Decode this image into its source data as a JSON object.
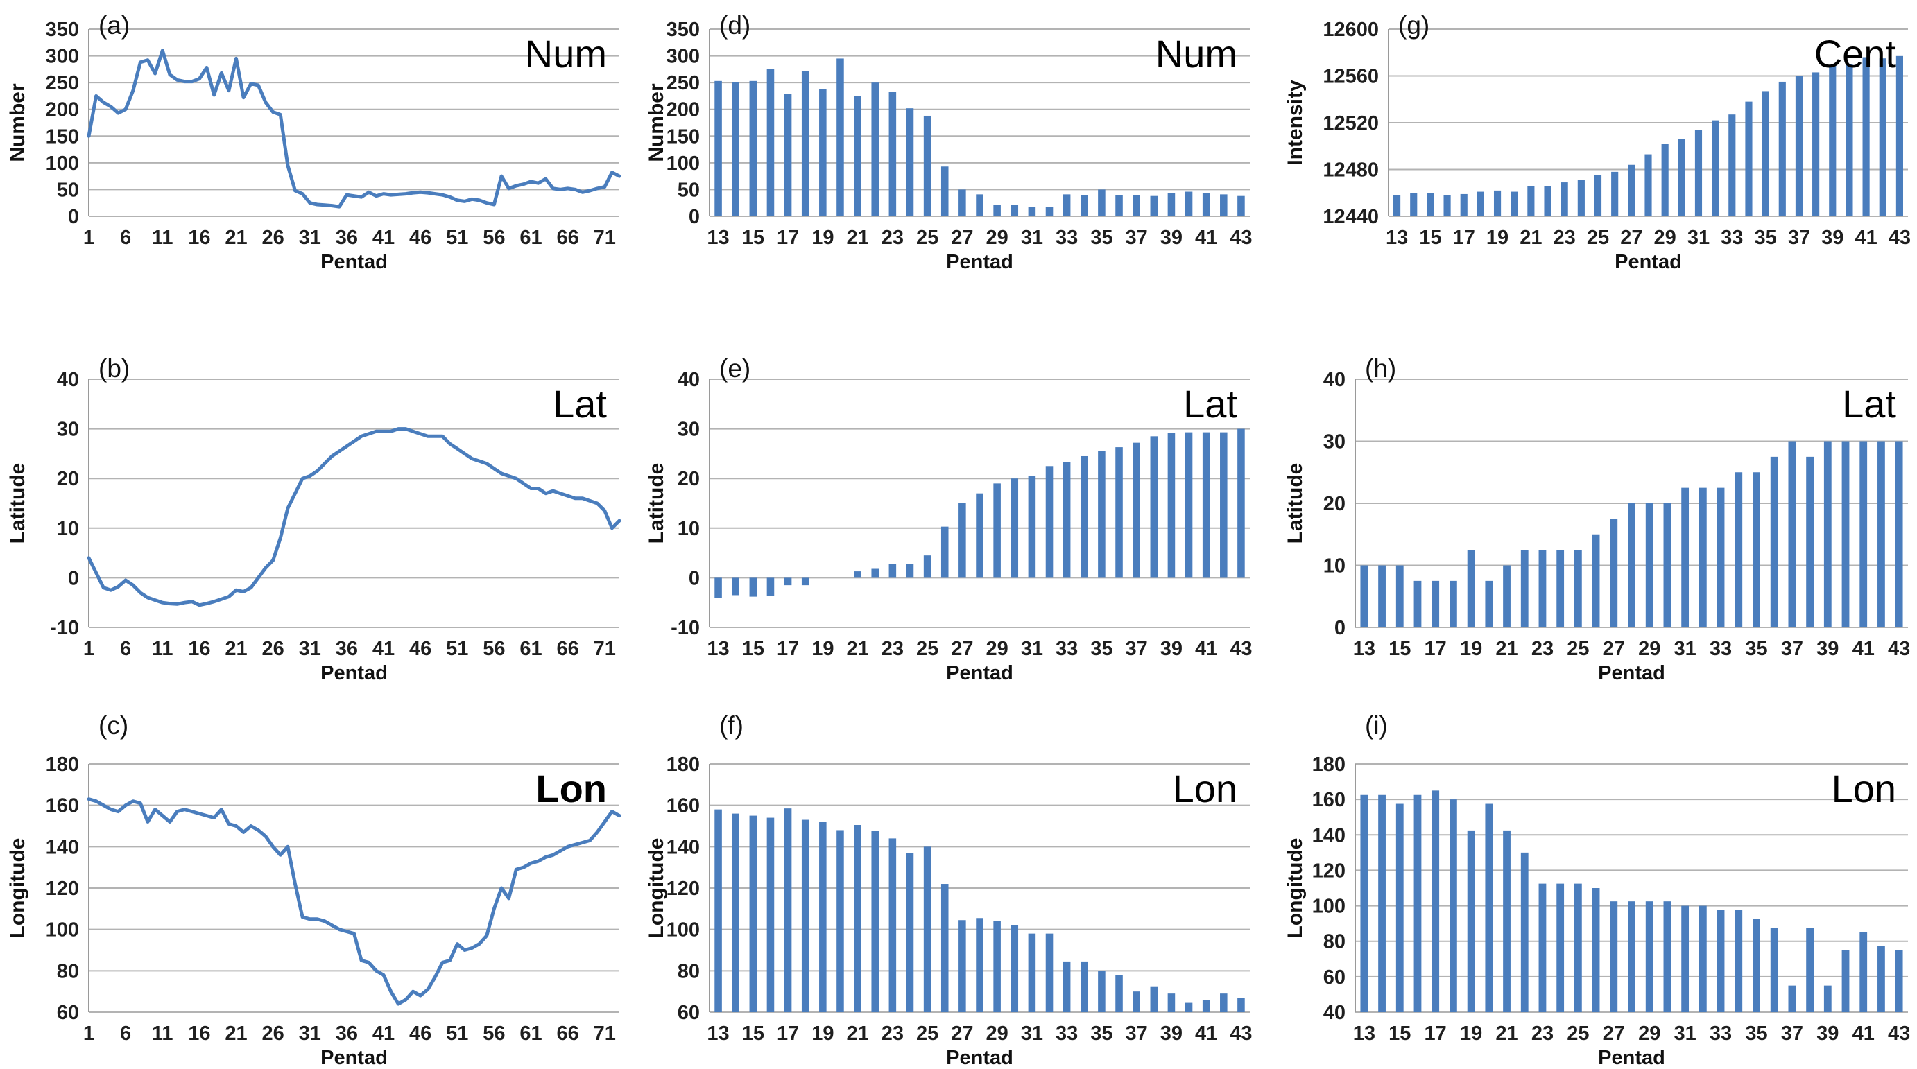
{
  "colors": {
    "series_blue": "#4a7dbd",
    "gridline_gray": "#b3b3b3",
    "axis_gray": "#9a9a9a",
    "text_dark": "#1f1f1f",
    "background": "#ffffff"
  },
  "chart_data": [
    {
      "panel_label": "(a)",
      "series_label": "Num",
      "type": "line",
      "xlabel": "Pentad",
      "ylabel": "Number",
      "ylim": [
        0,
        350
      ],
      "yticks": [
        0,
        50,
        100,
        150,
        200,
        250,
        300,
        350
      ],
      "x_start": 1,
      "x_end": 73,
      "xticks": [
        1,
        6,
        11,
        16,
        21,
        26,
        31,
        36,
        41,
        46,
        51,
        56,
        61,
        66,
        71
      ],
      "grid": true,
      "legend_position": "none",
      "values": [
        150,
        225,
        213,
        205,
        193,
        200,
        235,
        288,
        292,
        267,
        310,
        265,
        255,
        252,
        252,
        257,
        278,
        227,
        268,
        235,
        295,
        222,
        248,
        245,
        213,
        195,
        190,
        95,
        48,
        42,
        25,
        22,
        21,
        20,
        18,
        40,
        38,
        36,
        45,
        38,
        42,
        40,
        41,
        42,
        44,
        45,
        44,
        42,
        40,
        36,
        30,
        28,
        32,
        30,
        25,
        22,
        75,
        52,
        57,
        60,
        65,
        62,
        70,
        52,
        50,
        52,
        50,
        45,
        48,
        52,
        55,
        82,
        75
      ]
    },
    {
      "panel_label": "(b)",
      "series_label": "Lat",
      "type": "line",
      "xlabel": "Pentad",
      "ylabel": "Latitude",
      "ylim": [
        -10,
        40
      ],
      "yticks": [
        -10,
        0,
        10,
        20,
        30,
        40
      ],
      "x_start": 1,
      "x_end": 73,
      "xticks": [
        1,
        6,
        11,
        16,
        21,
        26,
        31,
        36,
        41,
        46,
        51,
        56,
        61,
        66,
        71
      ],
      "grid": true,
      "legend_position": "none",
      "values": [
        4,
        1,
        -2,
        -2.5,
        -1.8,
        -0.5,
        -1.5,
        -3,
        -4,
        -4.5,
        -5,
        -5.2,
        -5.3,
        -5,
        -4.8,
        -5.5,
        -5.2,
        -4.8,
        -4.3,
        -3.8,
        -2.5,
        -2.8,
        -2,
        0,
        2,
        3.5,
        8,
        14,
        17,
        20,
        20.5,
        21.5,
        23,
        24.5,
        25.5,
        26.5,
        27.5,
        28.5,
        29,
        29.5,
        29.5,
        29.5,
        30,
        30,
        29.5,
        29,
        28.5,
        28.5,
        28.5,
        27,
        26,
        25,
        24,
        23.5,
        23,
        22,
        21,
        20.5,
        20,
        19,
        18,
        18,
        17,
        17.5,
        17,
        16.5,
        16,
        16,
        15.5,
        15,
        13.5,
        10,
        11.5
      ]
    },
    {
      "panel_label": "(c)",
      "series_label": "Lon",
      "series_label_bold": true,
      "type": "line",
      "xlabel": "Pentad",
      "ylabel": "Longitude",
      "ylim": [
        60,
        180
      ],
      "yticks": [
        60,
        80,
        100,
        120,
        140,
        160,
        180
      ],
      "x_start": 1,
      "x_end": 73,
      "xticks": [
        1,
        6,
        11,
        16,
        21,
        26,
        31,
        36,
        41,
        46,
        51,
        56,
        61,
        66,
        71
      ],
      "grid": true,
      "legend_position": "none",
      "values": [
        163,
        162,
        160,
        158,
        157,
        160,
        162,
        161,
        152,
        158,
        155,
        152,
        157,
        158,
        157,
        156,
        155,
        154,
        158,
        151,
        150,
        147,
        150,
        148,
        145,
        140,
        136,
        140,
        122,
        106,
        105,
        105,
        104,
        102,
        100,
        99,
        98,
        85,
        84,
        80,
        78,
        70,
        64,
        66,
        70,
        68,
        71,
        77,
        84,
        85,
        93,
        90,
        91,
        93,
        97,
        110,
        120,
        115,
        129,
        130,
        132,
        133,
        135,
        136,
        138,
        140,
        141,
        142,
        143,
        147,
        152,
        157,
        155
      ]
    },
    {
      "panel_label": "(d)",
      "series_label": "Num",
      "type": "bar",
      "xlabel": "Pentad",
      "ylabel": "Number",
      "ylim": [
        0,
        350
      ],
      "yticks": [
        0,
        50,
        100,
        150,
        200,
        250,
        300,
        350
      ],
      "baseline": 0,
      "categories": [
        13,
        14,
        15,
        16,
        17,
        18,
        19,
        20,
        21,
        22,
        23,
        24,
        25,
        26,
        27,
        28,
        29,
        30,
        31,
        32,
        33,
        34,
        35,
        36,
        37,
        38,
        39,
        40,
        41,
        42,
        43
      ],
      "xticks": [
        13,
        15,
        17,
        19,
        21,
        23,
        25,
        27,
        29,
        31,
        33,
        35,
        37,
        39,
        41,
        43
      ],
      "grid": true,
      "legend_position": "none",
      "values": [
        253,
        251,
        253,
        275,
        229,
        271,
        238,
        295,
        225,
        250,
        233,
        202,
        188,
        93,
        50,
        41,
        22,
        22,
        18,
        17,
        41,
        40,
        50,
        39,
        40,
        38,
        43,
        46,
        44,
        41,
        38
      ]
    },
    {
      "panel_label": "(e)",
      "series_label": "Lat",
      "type": "bar",
      "xlabel": "Pentad",
      "ylabel": "Latitude",
      "ylim": [
        -10,
        40
      ],
      "yticks": [
        -10,
        0,
        10,
        20,
        30,
        40
      ],
      "baseline": 0,
      "categories": [
        13,
        14,
        15,
        16,
        17,
        18,
        19,
        20,
        21,
        22,
        23,
        24,
        25,
        26,
        27,
        28,
        29,
        30,
        31,
        32,
        33,
        34,
        35,
        36,
        37,
        38,
        39,
        40,
        41,
        42,
        43
      ],
      "xticks": [
        13,
        15,
        17,
        19,
        21,
        23,
        25,
        27,
        29,
        31,
        33,
        35,
        37,
        39,
        41,
        43
      ],
      "grid": true,
      "legend_position": "none",
      "values": [
        -4,
        -3.5,
        -3.8,
        -3.6,
        -1.5,
        -1.5,
        0,
        0,
        1.3,
        1.8,
        2.8,
        2.8,
        4.5,
        10.3,
        15,
        17,
        19,
        20,
        20.5,
        22.5,
        23.3,
        24.5,
        25.5,
        26.3,
        27.2,
        28.5,
        29.2,
        29.3,
        29.3,
        29.3,
        30
      ]
    },
    {
      "panel_label": "(f)",
      "series_label": "Lon",
      "type": "bar",
      "xlabel": "Pentad",
      "ylabel": "Longitude",
      "ylim": [
        60,
        180
      ],
      "yticks": [
        60,
        80,
        100,
        120,
        140,
        160,
        180
      ],
      "baseline": 60,
      "categories": [
        13,
        14,
        15,
        16,
        17,
        18,
        19,
        20,
        21,
        22,
        23,
        24,
        25,
        26,
        27,
        28,
        29,
        30,
        31,
        32,
        33,
        34,
        35,
        36,
        37,
        38,
        39,
        40,
        41,
        42,
        43
      ],
      "xticks": [
        13,
        15,
        17,
        19,
        21,
        23,
        25,
        27,
        29,
        31,
        33,
        35,
        37,
        39,
        41,
        43
      ],
      "grid": true,
      "legend_position": "none",
      "values": [
        158,
        156,
        155,
        154,
        158.5,
        153,
        152,
        148,
        150.5,
        147.5,
        144,
        137,
        140,
        122,
        104.5,
        105.5,
        104,
        102,
        98,
        98,
        84.5,
        84.5,
        80,
        78,
        70,
        72.5,
        69,
        64.5,
        66,
        69,
        67
      ]
    },
    {
      "panel_label": "(g)",
      "series_label": "Cent",
      "type": "bar",
      "xlabel": "Pentad",
      "ylabel": "Intensity",
      "ylim": [
        12440,
        12600
      ],
      "yticks": [
        12440,
        12480,
        12520,
        12560,
        12600
      ],
      "baseline": 12440,
      "categories": [
        13,
        14,
        15,
        16,
        17,
        18,
        19,
        20,
        21,
        22,
        23,
        24,
        25,
        26,
        27,
        28,
        29,
        30,
        31,
        32,
        33,
        34,
        35,
        36,
        37,
        38,
        39,
        40,
        41,
        42,
        43
      ],
      "xticks": [
        13,
        15,
        17,
        19,
        21,
        23,
        25,
        27,
        29,
        31,
        33,
        35,
        37,
        39,
        41,
        43
      ],
      "grid": true,
      "legend_position": "none",
      "values": [
        12458,
        12460,
        12460,
        12458,
        12459,
        12461,
        12462,
        12461,
        12466,
        12466,
        12469,
        12471,
        12475,
        12478,
        12484,
        12493,
        12502,
        12506,
        12514,
        12522,
        12527,
        12538,
        12547,
        12555,
        12560,
        12563,
        12569,
        12570,
        12576,
        12575,
        12577
      ]
    },
    {
      "panel_label": "(h)",
      "series_label": "Lat",
      "type": "bar",
      "xlabel": "Pentad",
      "ylabel": "Latitude",
      "ylim": [
        0,
        40
      ],
      "yticks": [
        0,
        10,
        20,
        30,
        40
      ],
      "baseline": 0,
      "categories": [
        13,
        14,
        15,
        16,
        17,
        18,
        19,
        20,
        21,
        22,
        23,
        24,
        25,
        26,
        27,
        28,
        29,
        30,
        31,
        32,
        33,
        34,
        35,
        36,
        37,
        38,
        39,
        40,
        41,
        42,
        43
      ],
      "xticks": [
        13,
        15,
        17,
        19,
        21,
        23,
        25,
        27,
        29,
        31,
        33,
        35,
        37,
        39,
        41,
        43
      ],
      "grid": true,
      "legend_position": "none",
      "values": [
        10,
        10,
        10,
        7.5,
        7.5,
        7.5,
        12.5,
        7.5,
        10,
        12.5,
        12.5,
        12.5,
        12.5,
        15,
        17.5,
        20,
        20,
        20,
        22.5,
        22.5,
        22.5,
        25,
        25,
        27.5,
        30,
        27.5,
        30,
        30,
        30,
        30,
        30
      ]
    },
    {
      "panel_label": "(i)",
      "series_label": "Lon",
      "type": "bar",
      "xlabel": "Pentad",
      "ylabel": "Longitude",
      "ylim": [
        40,
        180
      ],
      "yticks": [
        40,
        60,
        80,
        100,
        120,
        140,
        160,
        180
      ],
      "baseline": 40,
      "categories": [
        13,
        14,
        15,
        16,
        17,
        18,
        19,
        20,
        21,
        22,
        23,
        24,
        25,
        26,
        27,
        28,
        29,
        30,
        31,
        32,
        33,
        34,
        35,
        36,
        37,
        38,
        39,
        40,
        41,
        42,
        43
      ],
      "xticks": [
        13,
        15,
        17,
        19,
        21,
        23,
        25,
        27,
        29,
        31,
        33,
        35,
        37,
        39,
        41,
        43
      ],
      "grid": true,
      "legend_position": "none",
      "values": [
        162.5,
        162.5,
        157.5,
        162.5,
        165,
        160,
        142.5,
        157.5,
        142.5,
        130,
        112.5,
        112.5,
        112.5,
        110,
        102.5,
        102.5,
        102.5,
        102.5,
        100,
        100,
        97.5,
        97.5,
        92.5,
        87.5,
        55,
        87.5,
        55,
        75,
        85,
        77.5,
        75
      ]
    }
  ]
}
